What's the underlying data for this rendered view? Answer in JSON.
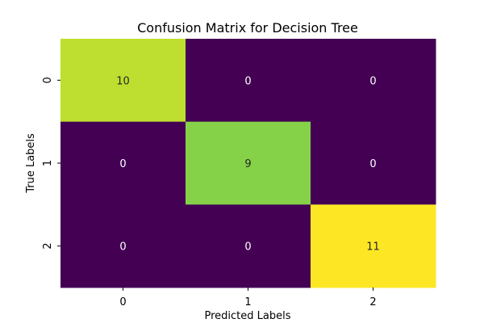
{
  "chart_data": {
    "type": "heatmap",
    "title": "Confusion Matrix for Decision Tree",
    "xlabel": "Predicted Labels",
    "ylabel": "True Labels",
    "x_categories": [
      "0",
      "1",
      "2"
    ],
    "y_categories": [
      "0",
      "1",
      "2"
    ],
    "values": [
      [
        10,
        0,
        0
      ],
      [
        0,
        9,
        0
      ],
      [
        0,
        0,
        11
      ]
    ],
    "colormap": "viridis",
    "vmin": 0,
    "vmax": 11,
    "colorbar": false,
    "annotations": true
  }
}
